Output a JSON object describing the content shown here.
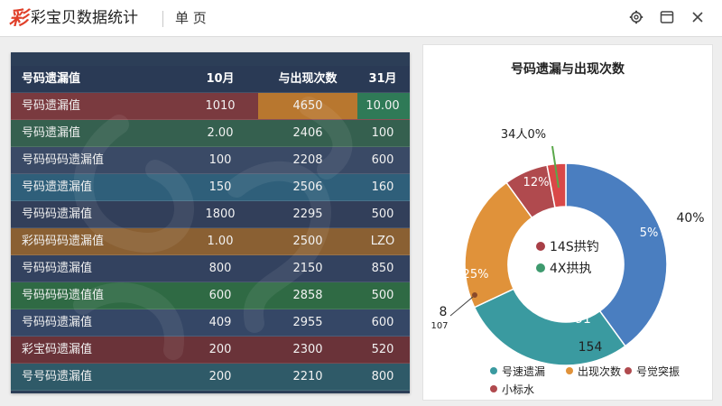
{
  "app": {
    "logo_char": "彩",
    "title": "彩宝贝数据统计",
    "page_name": "单 页"
  },
  "window_controls": [
    {
      "name": "settings",
      "icon": "gear-icon"
    },
    {
      "name": "restore",
      "icon": "window-icon"
    },
    {
      "name": "close",
      "icon": "close-icon"
    }
  ],
  "table": {
    "headers": [
      "号码遗漏值",
      "10月",
      "与出现次数",
      "31月"
    ],
    "rows": [
      {
        "cells": [
          "号码遗漏值",
          "1010",
          "4650",
          "10.00"
        ],
        "row_color": "#7a3a3f",
        "highlights": [
          {
            "col": 2,
            "color": "#b8772f"
          },
          {
            "col": 3,
            "color": "#2f7a57"
          }
        ]
      },
      {
        "cells": [
          "号码遗漏值",
          "2.00",
          "2406",
          "100"
        ],
        "row_color": "#35604f",
        "highlights": []
      },
      {
        "cells": [
          "号码码码遗漏值",
          "100",
          "2208",
          "600"
        ],
        "row_color": "#3a4a66",
        "highlights": []
      },
      {
        "cells": [
          "号码遗遗漏值",
          "150",
          "2506",
          "160"
        ],
        "row_color": "#2f5f7a",
        "highlights": []
      },
      {
        "cells": [
          "号码码遗漏值",
          "1800",
          "2295",
          "500"
        ],
        "row_color": "#323f5a",
        "highlights": []
      },
      {
        "cells": [
          "彩码码码遗漏值",
          "1.00",
          "2500",
          "LZO"
        ],
        "row_color": "#8a6033",
        "highlights": []
      },
      {
        "cells": [
          "号码码遗漏值",
          "800",
          "2150",
          "850"
        ],
        "row_color": "#33425f",
        "highlights": []
      },
      {
        "cells": [
          "号码码码遗值值",
          "600",
          "2858",
          "500"
        ],
        "row_color": "#2f6a44",
        "highlights": []
      },
      {
        "cells": [
          "号码码遗漏值",
          "409",
          "2955",
          "600"
        ],
        "row_color": "#354766",
        "highlights": []
      },
      {
        "cells": [
          "彩宝码遗漏值",
          "200",
          "2300",
          "520"
        ],
        "row_color": "#6a3339",
        "highlights": []
      },
      {
        "cells": [
          "号号码遗漏值",
          "200",
          "2210",
          "800"
        ],
        "row_color": "#2f5a68",
        "highlights": []
      }
    ]
  },
  "chart_data": {
    "type": "pie",
    "title": "号码遗漏与出现次数",
    "slices": [
      {
        "label": "号速遗漏",
        "value": 40,
        "color": "#4a7ec0"
      },
      {
        "label": "出现次数",
        "value": 28,
        "color": "#3a9aa0"
      },
      {
        "label": "号觉突振",
        "value": 22,
        "color": "#e0923a"
      },
      {
        "label": "小标水",
        "value": 7,
        "color": "#b04a4e"
      },
      {
        "label": "",
        "value": 3,
        "color": "#d94848"
      }
    ],
    "slice_labels": [
      "40%",
      "5%",
      "91",
      "154",
      "25%",
      "8",
      "107",
      "12%",
      "34人0%"
    ],
    "center_items": [
      {
        "text": "14S拱钓",
        "color": "#a83f46"
      },
      {
        "text": "4X拱执",
        "color": "#3e9a6e"
      }
    ],
    "legend": [
      {
        "text": "号速遗漏",
        "color": "#3a9aa0"
      },
      {
        "text": "出现次数",
        "color": "#e0923a"
      },
      {
        "text": "号觉突振",
        "color": "#b04a4e"
      },
      {
        "text": "小标水",
        "color": "#b04a4e"
      }
    ],
    "legend_placement": "bottom"
  }
}
